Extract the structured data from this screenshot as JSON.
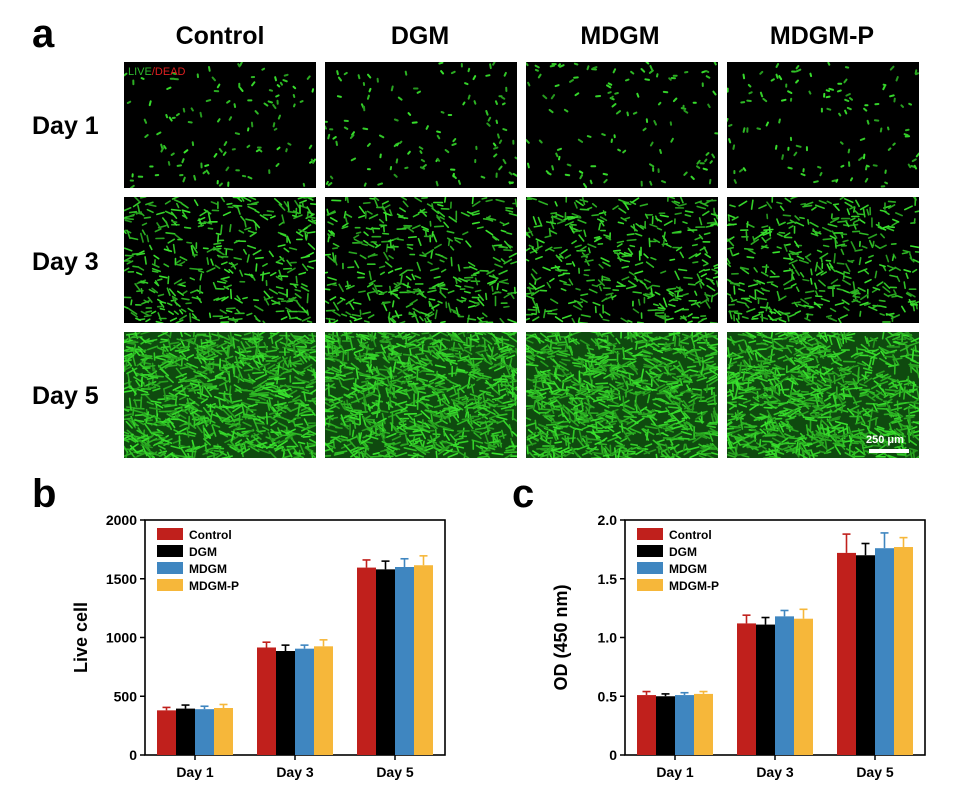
{
  "panel_a": {
    "letter": "a",
    "columns": [
      "Control",
      "DGM",
      "MDGM",
      "MDGM-P"
    ],
    "rows": [
      "Day 1",
      "Day 3",
      "Day 5"
    ],
    "stain_live": "LIVE",
    "stain_sep": "/",
    "stain_dead": "DEAD",
    "scale_bar": "250 μm",
    "colors": {
      "live": "#2db82d",
      "dead": "#e02020",
      "background": "#000000"
    }
  },
  "chart_data": [
    {
      "panel": "b",
      "type": "bar",
      "categories": [
        "Day 1",
        "Day 3",
        "Day 5"
      ],
      "ylabel": "Live cell",
      "xlabel": "",
      "ylim": [
        0,
        2000
      ],
      "yticks": [
        0,
        500,
        1000,
        1500,
        2000
      ],
      "legend_position": "top-left",
      "series": [
        {
          "name": "Control",
          "color": "#c0201c",
          "values": [
            380,
            915,
            1595
          ],
          "errors": [
            25,
            45,
            65
          ]
        },
        {
          "name": "DGM",
          "color": "#000000",
          "values": [
            395,
            885,
            1580
          ],
          "errors": [
            30,
            50,
            70
          ]
        },
        {
          "name": "MDGM",
          "color": "#3f86c0",
          "values": [
            390,
            905,
            1600
          ],
          "errors": [
            25,
            30,
            70
          ]
        },
        {
          "name": "MDGM-P",
          "color": "#f6b73a",
          "values": [
            400,
            925,
            1615
          ],
          "errors": [
            30,
            55,
            80
          ]
        }
      ]
    },
    {
      "panel": "c",
      "type": "bar",
      "categories": [
        "Day 1",
        "Day 3",
        "Day 5"
      ],
      "ylabel": "OD (450 nm)",
      "xlabel": "",
      "ylim": [
        0,
        2.0
      ],
      "yticks": [
        "0",
        "0.5",
        "1.0",
        "1.5",
        "2.0"
      ],
      "legend_position": "top-left",
      "series": [
        {
          "name": "Control",
          "color": "#c0201c",
          "values": [
            0.51,
            1.12,
            1.72
          ],
          "errors": [
            0.03,
            0.07,
            0.16
          ]
        },
        {
          "name": "DGM",
          "color": "#000000",
          "values": [
            0.5,
            1.11,
            1.7
          ],
          "errors": [
            0.02,
            0.06,
            0.1
          ]
        },
        {
          "name": "MDGM",
          "color": "#3f86c0",
          "values": [
            0.51,
            1.18,
            1.76
          ],
          "errors": [
            0.02,
            0.05,
            0.13
          ]
        },
        {
          "name": "MDGM-P",
          "color": "#f6b73a",
          "values": [
            0.52,
            1.16,
            1.77
          ],
          "errors": [
            0.02,
            0.08,
            0.08
          ]
        }
      ]
    }
  ]
}
